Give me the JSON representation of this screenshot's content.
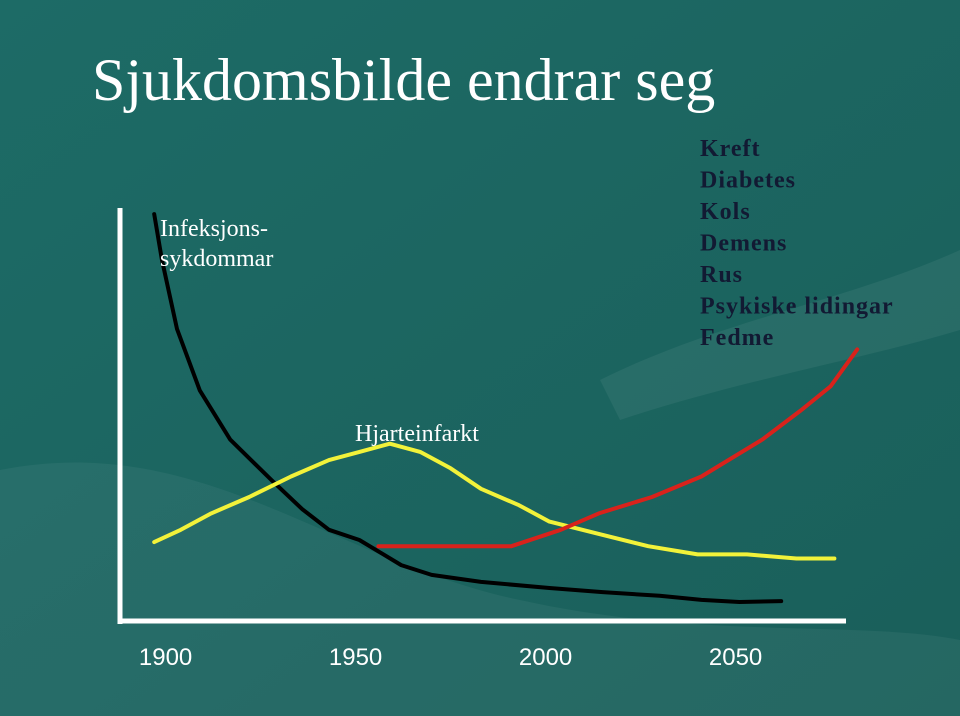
{
  "chart_data": {
    "type": "line",
    "title": "Sjukdomsbilde endrar seg",
    "xlim": [
      1888,
      2083
    ],
    "ylim": [
      0,
      100
    ],
    "xticks": [
      1900,
      1950,
      2000,
      2050
    ],
    "series": [
      {
        "name": [
          "Infeksjons-",
          "sykdommar"
        ],
        "color": "#000000",
        "x": [
          1897,
          1899,
          1903,
          1909,
          1917,
          1928,
          1936,
          1943,
          1951,
          1962,
          1970,
          1983,
          2001,
          2015,
          2030,
          2041,
          2051,
          2062
        ],
        "values": [
          99,
          88,
          71,
          56,
          44,
          34,
          27,
          22,
          19.5,
          13.4,
          11,
          9.3,
          7.8,
          6.8,
          5.9,
          4.9,
          4.4,
          4.6
        ]
      },
      {
        "name": "Hjarteinfarkt",
        "color": "#f2f23a",
        "x": [
          1897,
          1904,
          1912,
          1922,
          1933,
          1943,
          1951,
          1959,
          1967,
          1975,
          1983,
          1993,
          2001,
          2014,
          2027,
          2040,
          2053,
          2066,
          2076
        ],
        "values": [
          19,
          22,
          26,
          30,
          35,
          39,
          41,
          43,
          41,
          37,
          32,
          28,
          24,
          21,
          18,
          16,
          16,
          15,
          15
        ]
      },
      {
        "name": [
          "Kreft",
          "Diabetes",
          "Kols",
          "Demens",
          "Rus",
          "Psykiske lidingar",
          "Fedme"
        ],
        "color": "#d9221b",
        "x": [
          1956,
          1991,
          2004,
          2014,
          2028,
          2041,
          2057,
          2067,
          2075,
          2082
        ],
        "values": [
          18,
          18,
          22,
          26,
          30,
          35,
          44,
          51,
          57,
          66
        ]
      }
    ]
  }
}
